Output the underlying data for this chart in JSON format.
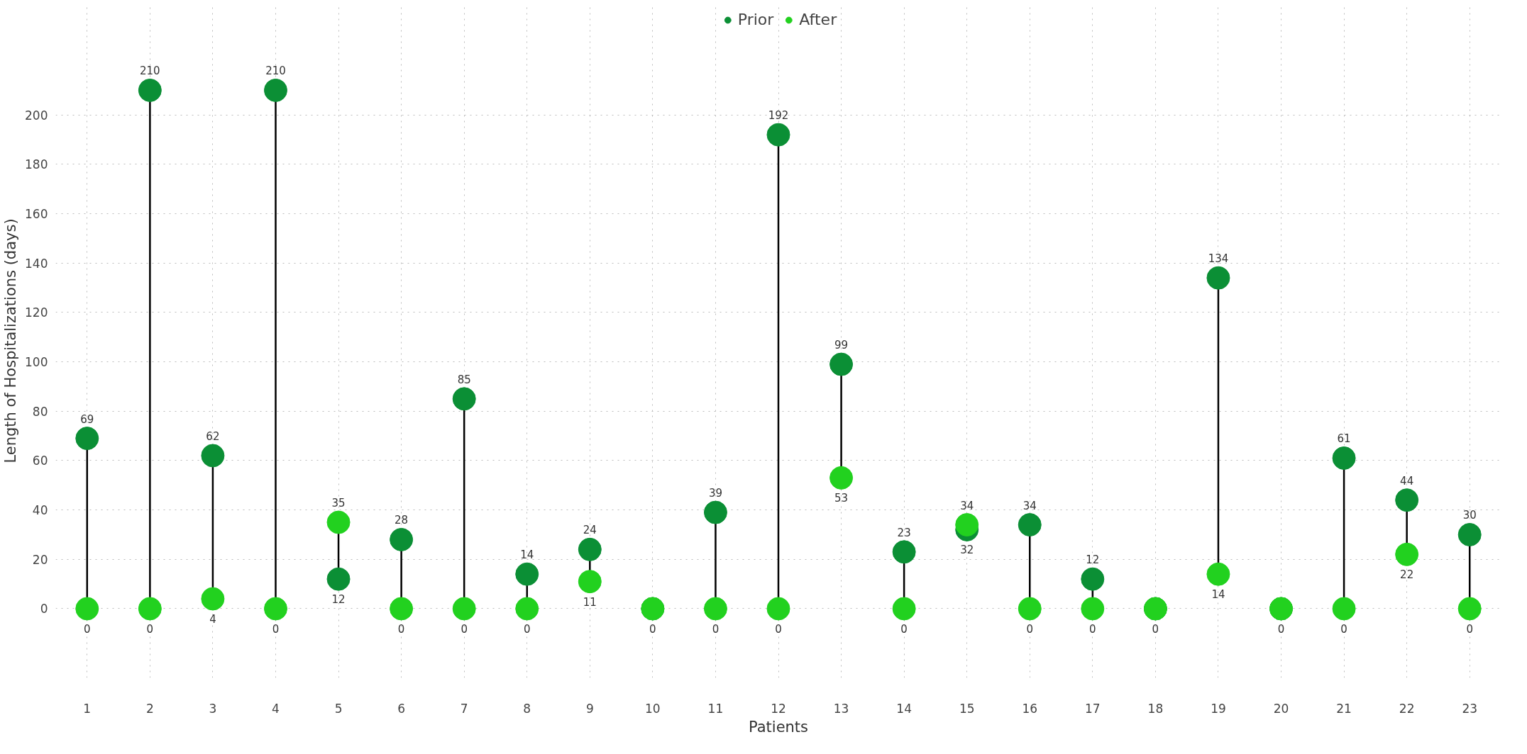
{
  "chart_data": {
    "type": "scatter",
    "xlabel": "Patients",
    "ylabel": "Length of Hospitalizations (days)",
    "categories": [
      "1",
      "2",
      "3",
      "4",
      "5",
      "6",
      "7",
      "8",
      "9",
      "10",
      "11",
      "12",
      "13",
      "14",
      "15",
      "16",
      "17",
      "18",
      "19",
      "20",
      "21",
      "22",
      "23"
    ],
    "series": [
      {
        "name": "Prior",
        "color": "#0b8f35",
        "values": [
          69,
          210,
          62,
          210,
          12,
          28,
          85,
          14,
          24,
          0,
          39,
          192,
          99,
          23,
          32,
          34,
          12,
          0,
          134,
          0,
          61,
          44,
          30
        ]
      },
      {
        "name": "After",
        "color": "#22d11f",
        "values": [
          0,
          0,
          4,
          0,
          35,
          0,
          0,
          0,
          11,
          0,
          0,
          0,
          53,
          0,
          34,
          0,
          0,
          0,
          14,
          0,
          0,
          22,
          0
        ],
        "value_labels": [
          "0",
          "0",
          "4",
          "0",
          "35",
          "0",
          "0",
          "0",
          "11",
          null,
          "0",
          "0",
          "53",
          "0",
          "34",
          "0",
          "0",
          null,
          "14",
          null,
          "0",
          "22",
          "0"
        ]
      }
    ],
    "ylim": [
      -28,
      245
    ],
    "yticks": [
      0,
      20,
      40,
      60,
      80,
      100,
      120,
      140,
      160,
      180,
      200
    ],
    "grid": true,
    "legend": "top",
    "marker": "circle",
    "data_labels": true
  }
}
